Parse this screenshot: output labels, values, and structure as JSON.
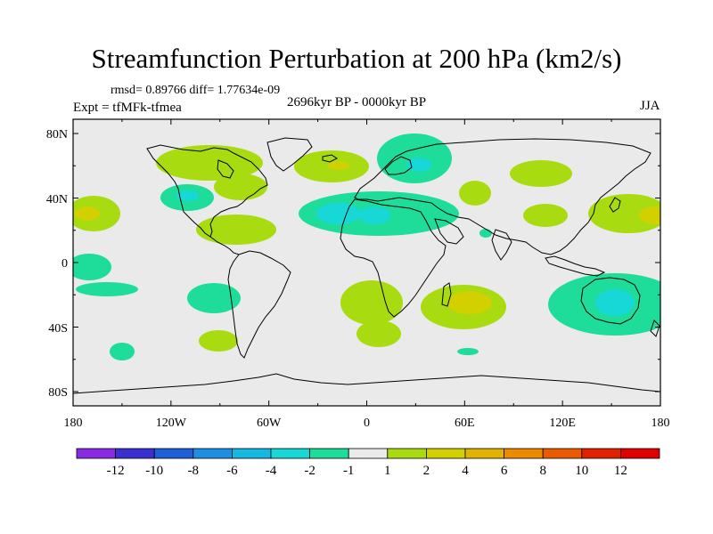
{
  "title": "Streamfunction Perturbation at 200 hPa (km2/s)",
  "stats": "rmsd= 0.89766 diff= 1.77634e-09",
  "experiment": "Expt = tfMFk-tfmea",
  "period": "2696kyr BP - 0000kyr BP",
  "season": "JJA",
  "y_ticks": [
    "80N",
    "40N",
    "0",
    "40S",
    "80S"
  ],
  "x_ticks": [
    "180",
    "120W",
    "60W",
    "0",
    "60E",
    "120E",
    "180"
  ],
  "colorbar": {
    "labels": [
      "-12",
      "-10",
      "-8",
      "-6",
      "-4",
      "-2",
      "-1",
      "1",
      "2",
      "4",
      "6",
      "8",
      "10",
      "12"
    ],
    "colors": [
      "#8a2be2",
      "#3a2fd0",
      "#1e5fd8",
      "#1c8fe0",
      "#14b8e0",
      "#17d8d6",
      "#1edc9a",
      "#eaeaea",
      "#a8dc10",
      "#d2d000",
      "#e0b400",
      "#ec8a00",
      "#ea5a00",
      "#e02000",
      "#e00000"
    ]
  },
  "colors": {
    "background": "#eaeaea",
    "land_outline": "#000000"
  },
  "anomalies": [
    {
      "lon": -145,
      "lat": 60,
      "value": 1.5
    },
    {
      "lon": -110,
      "lat": 52,
      "value": 2
    },
    {
      "lon": -102,
      "lat": 40,
      "value": -1.5
    },
    {
      "lon": -92,
      "lat": 25,
      "value": 1.5
    },
    {
      "lon": -175,
      "lat": 30,
      "value": 2
    },
    {
      "lon": -175,
      "lat": 0,
      "value": -1.5
    },
    {
      "lon": -95,
      "lat": -20,
      "value": -1.5
    },
    {
      "lon": -100,
      "lat": -45,
      "value": 1.5
    },
    {
      "lon": -150,
      "lat": -50,
      "value": -1.5
    },
    {
      "lon": -15,
      "lat": 60,
      "value": 1.5
    },
    {
      "lon": 30,
      "lat": 65,
      "value": -1.5
    },
    {
      "lon": -10,
      "lat": 30,
      "value": -2.5
    },
    {
      "lon": 70,
      "lat": 40,
      "value": 1.5
    },
    {
      "lon": 120,
      "lat": 55,
      "value": 1.5
    },
    {
      "lon": 120,
      "lat": 32,
      "value": 1.5
    },
    {
      "lon": 170,
      "lat": 30,
      "value": 1.5
    },
    {
      "lon": -5,
      "lat": -25,
      "value": 1.5
    },
    {
      "lon": 65,
      "lat": -25,
      "value": 3
    },
    {
      "lon": 140,
      "lat": -30,
      "value": -2.5
    },
    {
      "lon": 60,
      "lat": -50,
      "value": -1.5
    }
  ]
}
